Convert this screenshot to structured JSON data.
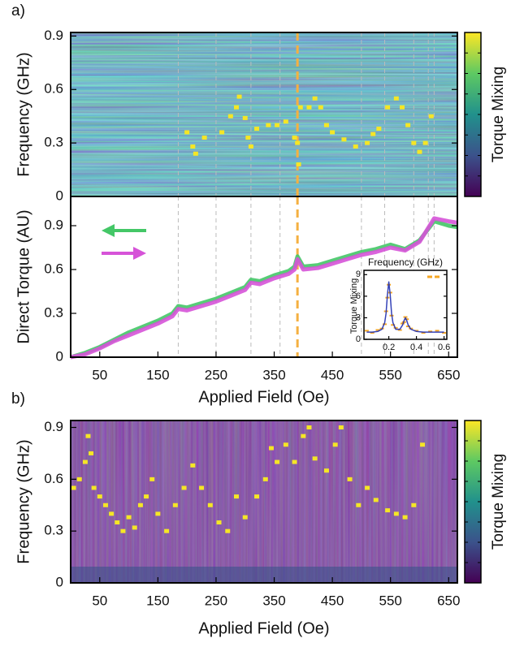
{
  "chart_data": [
    {
      "type": "heatmap",
      "panel_label": "a)",
      "ylabel": "Frequency (GHz)",
      "colorbar_label": "Torque Mixing",
      "xlim": [
        0,
        665
      ],
      "ylim": [
        0,
        0.92
      ],
      "yticks": [
        0,
        0.3,
        0.6,
        0.9
      ],
      "feature_color": "#f5e626",
      "features": {
        "x": [
          200,
          210,
          215,
          230,
          260,
          275,
          285,
          290,
          300,
          305,
          310,
          320,
          340,
          355,
          370,
          385,
          390,
          392,
          395,
          410,
          420,
          430,
          440,
          450,
          470,
          490,
          510,
          520,
          530,
          545,
          560,
          570,
          580,
          590,
          600,
          610,
          620
        ],
        "y": [
          0.36,
          0.28,
          0.24,
          0.33,
          0.36,
          0.45,
          0.5,
          0.56,
          0.44,
          0.33,
          0.28,
          0.38,
          0.4,
          0.4,
          0.42,
          0.33,
          0.3,
          0.18,
          0.5,
          0.5,
          0.55,
          0.5,
          0.4,
          0.36,
          0.32,
          0.28,
          0.3,
          0.35,
          0.38,
          0.5,
          0.55,
          0.5,
          0.4,
          0.3,
          0.25,
          0.3,
          0.45
        ]
      }
    },
    {
      "type": "line",
      "xlabel": "Applied Field (Oe)",
      "ylabel": "Direct Torque (AU)",
      "xlim": [
        0,
        665
      ],
      "ylim": [
        0,
        1.1
      ],
      "xticks": [
        50,
        150,
        250,
        350,
        450,
        550,
        650
      ],
      "yticks": [
        0,
        0.3,
        0.6,
        0.9
      ],
      "x": [
        0,
        25,
        50,
        75,
        100,
        125,
        150,
        175,
        185,
        200,
        225,
        250,
        275,
        300,
        310,
        325,
        350,
        375,
        385,
        390,
        400,
        425,
        450,
        475,
        500,
        525,
        550,
        575,
        600,
        625,
        650,
        665
      ],
      "series": [
        {
          "color": "#44c767",
          "values": [
            0,
            0.03,
            0.07,
            0.12,
            0.17,
            0.21,
            0.25,
            0.3,
            0.35,
            0.34,
            0.37,
            0.4,
            0.44,
            0.48,
            0.53,
            0.52,
            0.56,
            0.59,
            0.62,
            0.69,
            0.62,
            0.63,
            0.66,
            0.69,
            0.72,
            0.74,
            0.77,
            0.74,
            0.8,
            0.93,
            0.9,
            0.89
          ]
        },
        {
          "color": "#d653d8",
          "values": [
            0,
            0.02,
            0.06,
            0.11,
            0.15,
            0.19,
            0.23,
            0.28,
            0.33,
            0.32,
            0.35,
            0.38,
            0.42,
            0.46,
            0.51,
            0.5,
            0.54,
            0.57,
            0.6,
            0.67,
            0.6,
            0.61,
            0.64,
            0.67,
            0.7,
            0.72,
            0.75,
            0.73,
            0.79,
            0.95,
            0.93,
            0.92
          ]
        }
      ],
      "vlines": [
        185,
        250,
        310,
        360,
        500,
        540,
        590,
        615,
        625
      ],
      "vline_color": "#bbbbbb",
      "highlight": 390,
      "highlight_color": "#f5b041"
    },
    {
      "type": "line",
      "title": "Frequency (GHz)",
      "ylabel": "Torque Mixing",
      "xlim": [
        0.02,
        0.62
      ],
      "ylim": [
        0,
        9.6
      ],
      "xticks": [
        0.2,
        0.4,
        0.6
      ],
      "yticks": [
        0,
        3,
        6,
        9
      ],
      "x": [
        0.04,
        0.08,
        0.12,
        0.15,
        0.17,
        0.18,
        0.19,
        0.2,
        0.21,
        0.22,
        0.23,
        0.25,
        0.28,
        0.3,
        0.31,
        0.32,
        0.33,
        0.34,
        0.36,
        0.4,
        0.45,
        0.5,
        0.55,
        0.6
      ],
      "series": [
        {
          "color": "#f5a623",
          "style": "points",
          "values": [
            1.2,
            0.9,
            1.3,
            1.5,
            2.1,
            3.9,
            5.8,
            7.6,
            6.5,
            3.3,
            2.0,
            1.6,
            1.3,
            2.2,
            2.4,
            3.1,
            2.8,
            1.8,
            1.5,
            1.2,
            0.9,
            1.1,
            1.2,
            0.9
          ]
        },
        {
          "color": "#1f2fb0",
          "values": [
            1.0,
            1.0,
            1.1,
            1.4,
            2.3,
            3.6,
            6.2,
            8.0,
            6.2,
            3.6,
            2.3,
            1.4,
            1.4,
            2.0,
            2.6,
            3.0,
            2.6,
            2.0,
            1.4,
            1.1,
            1.0,
            1.0,
            1.0,
            1.0
          ]
        }
      ]
    },
    {
      "type": "heatmap",
      "panel_label": "b)",
      "xlabel": "Applied Field (Oe)",
      "ylabel": "Frequency (GHz)",
      "colorbar_label": "Torque Mixing",
      "xlim": [
        0,
        665
      ],
      "ylim": [
        0,
        0.94
      ],
      "xticks": [
        50,
        150,
        250,
        350,
        450,
        550,
        650
      ],
      "yticks": [
        0,
        0.3,
        0.6,
        0.9
      ],
      "feature_color": "#f5e626",
      "features": {
        "x": [
          5,
          15,
          25,
          30,
          35,
          40,
          50,
          60,
          70,
          80,
          90,
          100,
          110,
          120,
          130,
          140,
          150,
          165,
          180,
          195,
          210,
          225,
          240,
          255,
          270,
          285,
          300,
          320,
          335,
          345,
          355,
          370,
          385,
          400,
          410,
          420,
          440,
          455,
          465,
          480,
          495,
          510,
          525,
          545,
          560,
          575,
          590,
          605
        ],
        "y": [
          0.55,
          0.6,
          0.7,
          0.85,
          0.75,
          0.55,
          0.5,
          0.45,
          0.4,
          0.35,
          0.3,
          0.38,
          0.32,
          0.45,
          0.5,
          0.6,
          0.4,
          0.3,
          0.45,
          0.55,
          0.68,
          0.55,
          0.45,
          0.35,
          0.3,
          0.5,
          0.38,
          0.5,
          0.6,
          0.78,
          0.7,
          0.8,
          0.7,
          0.85,
          0.9,
          0.72,
          0.65,
          0.8,
          0.9,
          0.6,
          0.45,
          0.55,
          0.48,
          0.42,
          0.4,
          0.38,
          0.45,
          0.8
        ]
      }
    }
  ]
}
